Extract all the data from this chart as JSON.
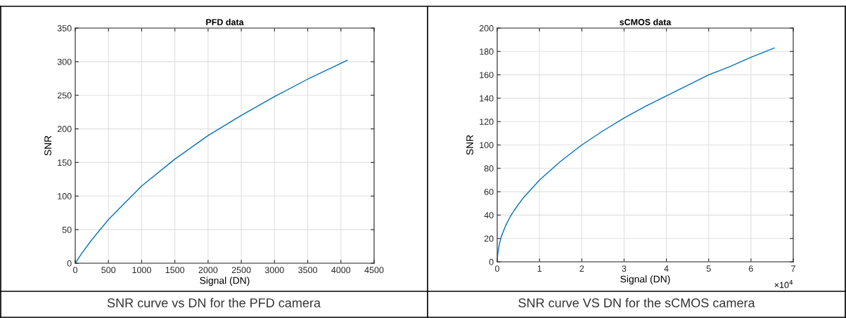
{
  "chart_data": [
    {
      "type": "line",
      "title": "PFD data",
      "xlabel": "Signal (DN)",
      "ylabel": "SNR",
      "x": [
        0,
        100,
        250,
        500,
        750,
        1000,
        1500,
        2000,
        2500,
        3000,
        3500,
        4095
      ],
      "series": [
        {
          "color": "#0072bd",
          "values": [
            0,
            15,
            35,
            65,
            90,
            115,
            155,
            190,
            220,
            248,
            274,
            302
          ]
        }
      ],
      "xlim": [
        0,
        4500
      ],
      "xticks": [
        0,
        500,
        1000,
        1500,
        2000,
        2500,
        3000,
        3500,
        4000,
        4500
      ],
      "ylim": [
        0,
        350
      ],
      "yticks": [
        0,
        50,
        100,
        150,
        200,
        250,
        300,
        350
      ],
      "grid": true,
      "annotations": [
        "SNR curve vs DN for the PFD camera"
      ]
    },
    {
      "type": "line",
      "title": "sCMOS data",
      "xlabel": "Signal (DN)",
      "ylabel": "SNR",
      "x": [
        0,
        0.01,
        0.05,
        0.1,
        0.2,
        0.3,
        0.4,
        0.6,
        0.8,
        1,
        1.5,
        2,
        2.5,
        3,
        3.5,
        4,
        4.5,
        5,
        5.5,
        6,
        6.55
      ],
      "series": [
        {
          "color": "#0072bd",
          "values": [
            0,
            6,
            15,
            22,
            31,
            38,
            44,
            54,
            62,
            70,
            86,
            100,
            112,
            123,
            133,
            142,
            151,
            160,
            167,
            175,
            183
          ]
        }
      ],
      "xlim": [
        0,
        7
      ],
      "xticks": [
        0,
        1,
        2,
        3,
        4,
        5,
        6,
        7
      ],
      "ylim": [
        0,
        200
      ],
      "yticks": [
        0,
        20,
        40,
        60,
        80,
        100,
        120,
        140,
        160,
        180,
        200
      ],
      "grid": true,
      "annotations": [
        "×10$^{4}$",
        "SNR curve VS DN for the sCMOS camera"
      ]
    }
  ]
}
